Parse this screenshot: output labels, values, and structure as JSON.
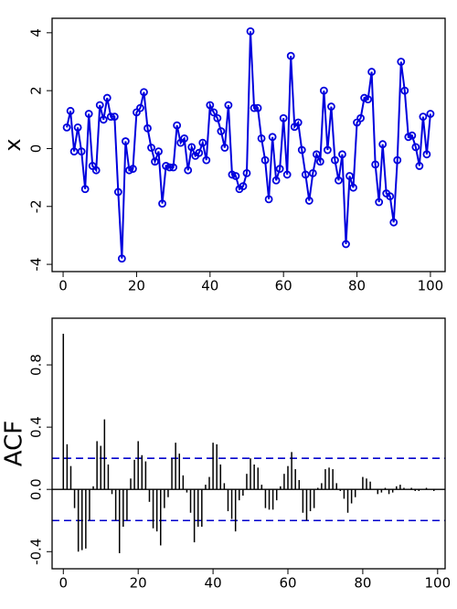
{
  "chart_data": [
    {
      "type": "line",
      "ylabel": "x",
      "x": [
        1,
        2,
        3,
        4,
        5,
        6,
        7,
        8,
        9,
        10,
        11,
        12,
        13,
        14,
        15,
        16,
        17,
        18,
        19,
        20,
        21,
        22,
        23,
        24,
        25,
        26,
        27,
        28,
        29,
        30,
        31,
        32,
        33,
        34,
        35,
        36,
        37,
        38,
        39,
        40,
        41,
        42,
        43,
        44,
        45,
        46,
        47,
        48,
        49,
        50,
        51,
        52,
        53,
        54,
        55,
        56,
        57,
        58,
        59,
        60,
        61,
        62,
        63,
        64,
        65,
        66,
        67,
        68,
        69,
        70,
        71,
        72,
        73,
        74,
        75,
        76,
        77,
        78,
        79,
        80,
        81,
        82,
        83,
        84,
        85,
        86,
        87,
        88,
        89,
        90,
        91,
        92,
        93,
        94,
        95,
        96,
        97,
        98,
        99,
        100
      ],
      "series": [
        {
          "color": "#0000dd",
          "values": [
            0.73,
            1.3,
            -0.1,
            0.73,
            -0.1,
            -1.4,
            1.2,
            -0.6,
            -0.75,
            1.5,
            1.0,
            1.75,
            1.1,
            1.1,
            -1.5,
            -3.8,
            0.25,
            -0.75,
            -0.7,
            1.25,
            1.4,
            1.95,
            0.7,
            0.03,
            -0.45,
            -0.1,
            -1.9,
            -0.6,
            -0.65,
            -0.65,
            0.8,
            0.2,
            0.35,
            -0.75,
            0.05,
            -0.25,
            -0.15,
            0.2,
            -0.4,
            1.5,
            1.25,
            1.05,
            0.6,
            0.03,
            1.5,
            -0.9,
            -0.95,
            -1.4,
            -1.3,
            -0.85,
            4.05,
            1.4,
            1.4,
            0.35,
            -0.4,
            -1.75,
            0.4,
            -1.1,
            -0.7,
            1.05,
            -0.9,
            3.2,
            0.75,
            0.9,
            -0.05,
            -0.9,
            -1.8,
            -0.85,
            -0.2,
            -0.45,
            2.0,
            -0.05,
            1.45,
            -0.4,
            -1.1,
            -0.2,
            -3.3,
            -0.95,
            -1.35,
            0.9,
            1.05,
            1.75,
            1.7,
            2.65,
            -0.55,
            -1.85,
            0.15,
            -1.55,
            -1.65,
            -2.55,
            -0.4,
            3.0,
            2.0,
            0.4,
            0.45,
            0.05,
            -0.6,
            1.1,
            -0.2,
            1.2
          ]
        }
      ],
      "xlim": [
        -3,
        104
      ],
      "xticks": [
        0,
        20,
        40,
        60,
        80,
        100
      ],
      "ylim": [
        -4.25,
        4.5
      ],
      "yticks": [
        -4,
        -2,
        0,
        2,
        4
      ]
    },
    {
      "type": "bar",
      "ylabel": "ACF",
      "color": "#000000",
      "x": [
        0,
        1,
        2,
        3,
        4,
        5,
        6,
        7,
        8,
        9,
        10,
        11,
        12,
        13,
        14,
        15,
        16,
        17,
        18,
        19,
        20,
        21,
        22,
        23,
        24,
        25,
        26,
        27,
        28,
        29,
        30,
        31,
        32,
        33,
        34,
        35,
        36,
        37,
        38,
        39,
        40,
        41,
        42,
        43,
        44,
        45,
        46,
        47,
        48,
        49,
        50,
        51,
        52,
        53,
        54,
        55,
        56,
        57,
        58,
        59,
        60,
        61,
        62,
        63,
        64,
        65,
        66,
        67,
        68,
        69,
        70,
        71,
        72,
        73,
        74,
        75,
        76,
        77,
        78,
        79,
        80,
        81,
        82,
        83,
        84,
        85,
        86,
        87,
        88,
        89,
        90,
        91,
        92,
        93,
        94,
        95,
        96,
        97,
        98,
        99,
        100
      ],
      "values": [
        1.0,
        0.29,
        0.15,
        -0.12,
        -0.4,
        -0.39,
        -0.38,
        -0.2,
        0.02,
        0.31,
        0.28,
        0.45,
        0.16,
        -0.03,
        -0.2,
        -0.41,
        -0.24,
        -0.2,
        0.07,
        0.19,
        0.31,
        0.22,
        0.18,
        -0.08,
        -0.25,
        -0.27,
        -0.36,
        -0.12,
        -0.05,
        0.2,
        0.3,
        0.23,
        0.09,
        -0.02,
        -0.15,
        -0.34,
        -0.24,
        -0.24,
        0.03,
        0.08,
        0.3,
        0.29,
        0.16,
        0.04,
        -0.14,
        -0.19,
        -0.27,
        -0.07,
        -0.04,
        0.1,
        0.2,
        0.16,
        0.14,
        0.03,
        -0.12,
        -0.13,
        -0.13,
        -0.07,
        0.02,
        0.1,
        0.15,
        0.24,
        0.13,
        0.06,
        -0.15,
        -0.2,
        -0.14,
        -0.12,
        0.01,
        0.04,
        0.13,
        0.14,
        0.13,
        0.04,
        -0.01,
        -0.06,
        -0.15,
        -0.09,
        -0.05,
        0.0,
        0.08,
        0.07,
        0.05,
        0.0,
        -0.03,
        -0.02,
        0.01,
        -0.03,
        -0.02,
        0.02,
        0.03,
        0.01,
        0.0,
        0.01,
        -0.01,
        -0.01,
        0.0,
        0.01,
        0.0,
        -0.01,
        0.0
      ],
      "reference_lines": [
        0.2,
        -0.2
      ],
      "reference_color": "#0000cc",
      "xlim": [
        -3,
        102
      ],
      "xticks": [
        0,
        20,
        40,
        60,
        80,
        100
      ],
      "ylim": [
        -0.51,
        1.1
      ],
      "yticks": [
        -0.4,
        {
          "value": 0,
          "label": "0.0"
        },
        0.4,
        0.8
      ]
    }
  ]
}
